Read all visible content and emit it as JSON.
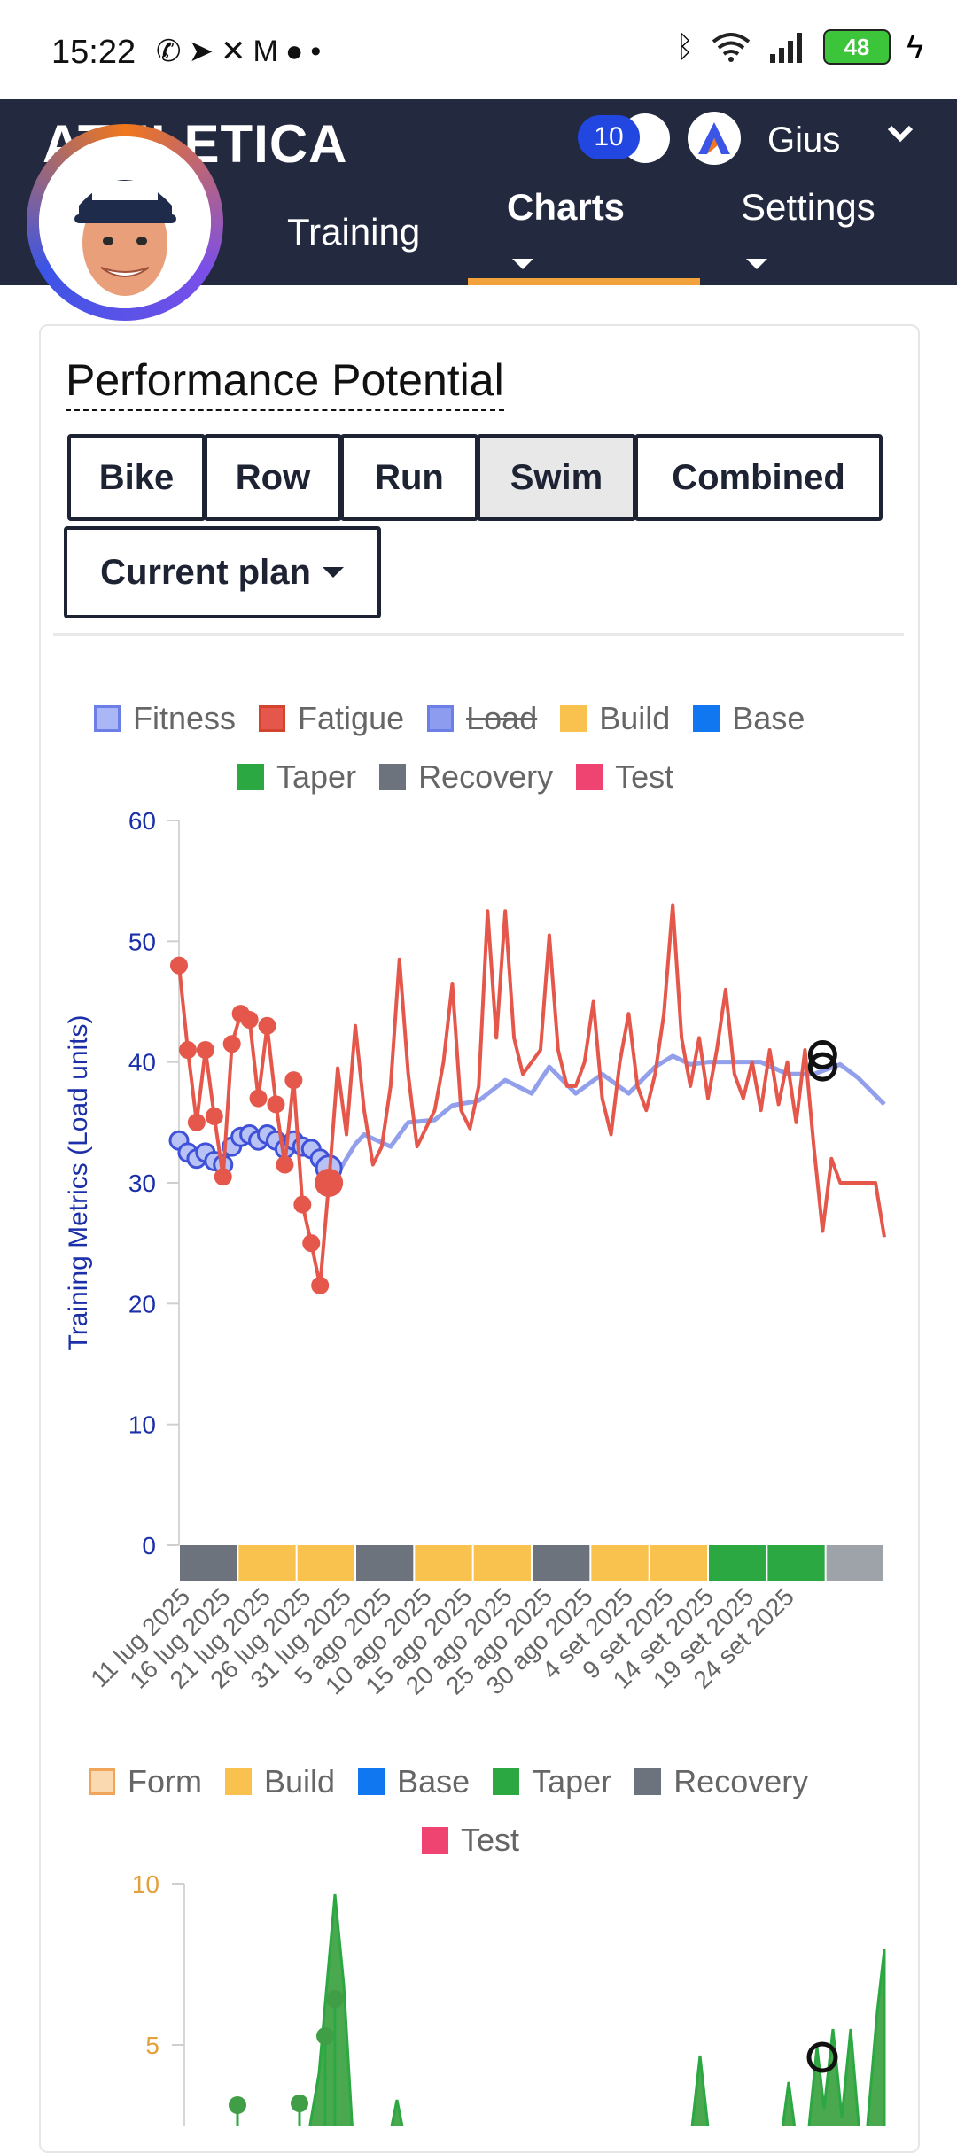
{
  "status_bar": {
    "time": "15:22",
    "left_icons": [
      "whatsapp-icon",
      "telegram-icon",
      "missed-call-icon",
      "gmail-icon",
      "app-icon",
      "dot-icon"
    ],
    "battery": "48"
  },
  "header": {
    "logo": "ATHLETICA",
    "notifications": "10",
    "user_name": "Gius"
  },
  "nav": {
    "tabs": [
      {
        "label": "Training"
      },
      {
        "label": "Charts",
        "active": true
      },
      {
        "label": "Settings"
      }
    ]
  },
  "card": {
    "title": "Performance Potential",
    "sport_buttons": [
      "Bike",
      "Row",
      "Run",
      "Swim",
      "Combined"
    ],
    "active_sport": "Swim",
    "plan_dropdown": "Current plan"
  },
  "chart1_legend": [
    {
      "label": "Fitness",
      "color": "#6b7fe6"
    },
    {
      "label": "Fatigue",
      "color": "#e4574a"
    },
    {
      "label": "Load",
      "color": "#8e9cf0",
      "struck": true
    },
    {
      "label": "Build",
      "color": "#f9c14e"
    },
    {
      "label": "Base",
      "color": "#1177f0"
    },
    {
      "label": "Taper",
      "color": "#2ca843"
    },
    {
      "label": "Recovery",
      "color": "#6c737c"
    },
    {
      "label": "Test",
      "color": "#ef4472"
    }
  ],
  "chart2_legend": [
    {
      "label": "Form",
      "color": "#f9c98a"
    },
    {
      "label": "Build",
      "color": "#f9c14e"
    },
    {
      "label": "Base",
      "color": "#1177f0"
    },
    {
      "label": "Taper",
      "color": "#2ca843"
    },
    {
      "label": "Recovery",
      "color": "#6c737c"
    },
    {
      "label": "Test",
      "color": "#ef4472"
    }
  ],
  "chart_data": [
    {
      "type": "line",
      "ylabel": "Training Metrics (Load units)",
      "ylim": [
        0,
        60
      ],
      "yticks": [
        "60",
        "50",
        "40",
        "30",
        "20",
        "10",
        "0"
      ],
      "x_tick_labels": [
        "11 lug 2025",
        "16 lug 2025",
        "21 lug 2025",
        "26 lug 2025",
        "31 lug 2025",
        "5 ago 2025",
        "10 ago 2025",
        "15 ago 2025",
        "20 ago 2025",
        "25 ago 2025",
        "30 ago 2025",
        "4 set 2025",
        "9 set 2025",
        "14 set 2025",
        "19 set 2025",
        "24 set 2025"
      ],
      "x_range_days": [
        0,
        80
      ],
      "series": [
        {
          "name": "Fitness",
          "color": "#6b7fe6",
          "x": [
            0,
            1,
            2,
            3,
            4,
            5,
            6,
            7,
            8,
            9,
            10,
            11,
            12,
            13,
            14,
            15,
            16,
            17,
            18,
            19,
            20,
            21,
            24,
            26,
            29,
            31,
            34,
            37,
            40,
            42,
            45,
            48,
            51,
            54,
            56,
            58,
            60,
            63,
            66,
            69,
            72,
            75,
            77,
            80
          ],
          "y": [
            33.5,
            32.5,
            32,
            32.5,
            31.8,
            31.5,
            33,
            33.8,
            34,
            33.5,
            34,
            33.5,
            32.8,
            33.5,
            33,
            32.8,
            32,
            31.2,
            30.8,
            32,
            33.2,
            34,
            33,
            35,
            35.2,
            36.4,
            36.8,
            38.5,
            37.4,
            39.6,
            37.4,
            39,
            37.4,
            39.6,
            40.5,
            39.8,
            40,
            40,
            40,
            39,
            39,
            39.8,
            38.7,
            36.5
          ]
        },
        {
          "name": "Fatigue",
          "color": "#e4574a",
          "x": [
            0,
            1,
            2,
            3,
            4,
            5,
            6,
            7,
            8,
            9,
            10,
            11,
            12,
            13,
            14,
            15,
            16,
            17,
            18,
            19,
            20,
            21,
            22,
            23,
            24,
            25,
            26,
            27,
            28,
            29,
            30,
            31,
            32,
            33,
            34,
            35,
            36,
            37,
            38,
            39,
            40,
            41,
            42,
            43,
            44,
            45,
            46,
            47,
            48,
            49,
            50,
            51,
            52,
            53,
            54,
            55,
            56,
            57,
            58,
            59,
            60,
            61,
            62,
            63,
            64,
            65,
            66,
            67,
            68,
            69,
            70,
            71,
            72,
            73,
            74,
            75,
            76,
            77,
            78,
            79,
            80
          ],
          "y": [
            48,
            41,
            35,
            41,
            35.5,
            30.5,
            41.5,
            44,
            43.5,
            37,
            43,
            36.5,
            31.5,
            38.5,
            28.2,
            25,
            21.5,
            30,
            39.5,
            34,
            43,
            36,
            31.5,
            33,
            38,
            48.5,
            39,
            33,
            34.5,
            36,
            40,
            46.5,
            36,
            34.5,
            38,
            52.5,
            42,
            52.5,
            42,
            39,
            40,
            41,
            50.5,
            41,
            38,
            38,
            40,
            45,
            37,
            34,
            40,
            44,
            38,
            36,
            39,
            44,
            53,
            42,
            38,
            42,
            37,
            41,
            46,
            39,
            37,
            40,
            36,
            41,
            36.5,
            40,
            35,
            41,
            33,
            26,
            32,
            30,
            30,
            30,
            30,
            30,
            25.5
          ]
        }
      ],
      "phase_bar": [
        "Recovery",
        "Build",
        "Build",
        "Recovery",
        "Build",
        "Build",
        "Recovery",
        "Build",
        "Build",
        "Taper",
        "Taper",
        "Recovery"
      ]
    },
    {
      "type": "area",
      "ylim": [
        0,
        10
      ],
      "yticks": [
        "10",
        "5"
      ],
      "series": [
        {
          "name": "Form",
          "color": "#2ca843"
        }
      ]
    }
  ]
}
